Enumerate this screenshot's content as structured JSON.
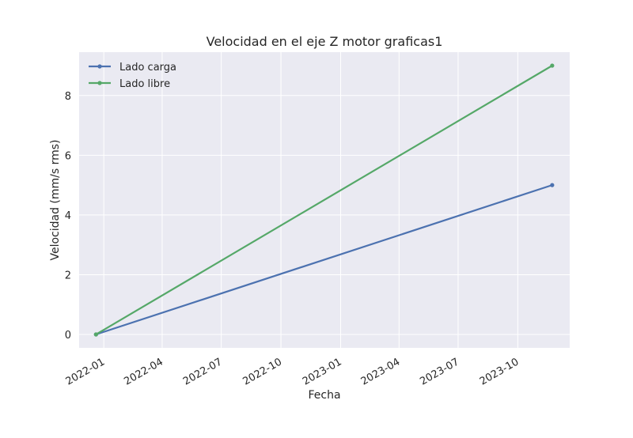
{
  "chart_data": {
    "type": "line",
    "title": "Velocidad en el eje Z motor graficas1",
    "xlabel": "Fecha",
    "ylabel": "Velocidad (mm/s rms)",
    "x_tick_labels": [
      "2022-01",
      "2022-04",
      "2022-07",
      "2022-10",
      "2023-01",
      "2023-04",
      "2023-07",
      "2023-10"
    ],
    "y_tick_labels": [
      "0",
      "2",
      "4",
      "6",
      "8"
    ],
    "x_ticks": [
      "2022-01-01",
      "2022-04-01",
      "2022-07-01",
      "2022-10-01",
      "2023-01-01",
      "2023-04-01",
      "2023-07-01",
      "2023-10-01"
    ],
    "y_ticks": [
      0,
      2,
      4,
      6,
      8
    ],
    "xlim": [
      "2021-11-24",
      "2023-12-20"
    ],
    "ylim": [
      -0.45,
      9.45
    ],
    "x": [
      "2021-12-20",
      "2023-11-23"
    ],
    "series": [
      {
        "name": "Lado carga",
        "values": [
          0,
          5
        ],
        "color": "#4c72b0"
      },
      {
        "name": "Lado libre",
        "values": [
          0,
          9
        ],
        "color": "#55a868"
      }
    ],
    "grid": true,
    "legend_position": "upper-left",
    "plot_background": "#eaeaf2",
    "grid_color": "#ffffff"
  }
}
